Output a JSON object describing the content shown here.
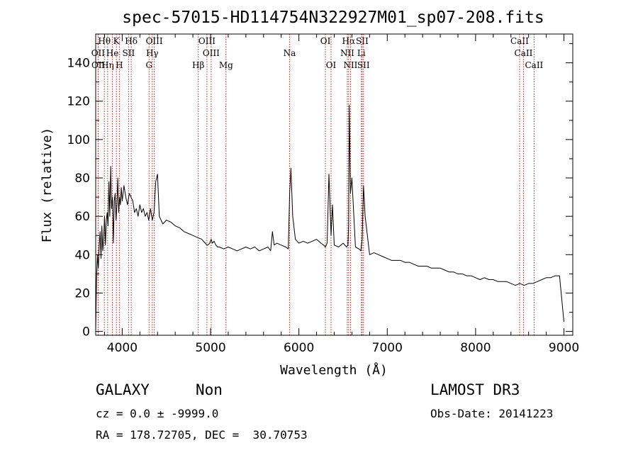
{
  "chart_data": {
    "type": "line",
    "title": "spec-57015-HD114754N322927M01_sp07-208.fits",
    "xlabel": "Wavelength (Å)",
    "ylabel": "Flux (relative)",
    "xlim": [
      3700,
      9100
    ],
    "ylim": [
      -2,
      155
    ],
    "x_ticks": [
      4000,
      5000,
      6000,
      7000,
      8000,
      9000
    ],
    "y_ticks": [
      0,
      20,
      40,
      60,
      80,
      100,
      120,
      140
    ],
    "series": [
      {
        "x": [
          3700,
          3710,
          3720,
          3730,
          3740,
          3750,
          3760,
          3770,
          3780,
          3790,
          3800,
          3810,
          3820,
          3830,
          3840,
          3850,
          3860,
          3870,
          3880,
          3890,
          3900,
          3910,
          3920,
          3930,
          3940,
          3950,
          3960,
          3970,
          3980,
          3990,
          4000,
          4020,
          4040,
          4060,
          4080,
          4100,
          4120,
          4140,
          4160,
          4180,
          4200,
          4220,
          4240,
          4260,
          4280,
          4300,
          4320,
          4340,
          4360,
          4380,
          4400,
          4420,
          4440,
          4460,
          4480,
          4500,
          4550,
          4600,
          4650,
          4700,
          4750,
          4800,
          4850,
          4900,
          4920,
          4940,
          4958,
          4970,
          4990,
          5007,
          5020,
          5040,
          5060,
          5080,
          5100,
          5150,
          5200,
          5250,
          5300,
          5350,
          5400,
          5450,
          5500,
          5550,
          5600,
          5650,
          5680,
          5700,
          5720,
          5750,
          5800,
          5850,
          5880,
          5895,
          5910,
          5930,
          5960,
          6000,
          6050,
          6100,
          6150,
          6200,
          6250,
          6280,
          6300,
          6320,
          6340,
          6364,
          6380,
          6400,
          6450,
          6500,
          6540,
          6555,
          6563,
          6570,
          6584,
          6600,
          6640,
          6680,
          6700,
          6716,
          6731,
          6750,
          6800,
          6850,
          6900,
          6950,
          7000,
          7050,
          7100,
          7150,
          7200,
          7250,
          7300,
          7350,
          7400,
          7450,
          7500,
          7550,
          7600,
          7650,
          7700,
          7750,
          7800,
          7850,
          7900,
          7950,
          8000,
          8050,
          8100,
          8150,
          8200,
          8250,
          8300,
          8350,
          8400,
          8450,
          8500,
          8550,
          8600,
          8650,
          8700,
          8750,
          8800,
          8850,
          8900,
          8950,
          9000
        ],
        "y": [
          0,
          28,
          40,
          33,
          45,
          52,
          38,
          55,
          42,
          48,
          60,
          45,
          58,
          62,
          55,
          78,
          60,
          86,
          64,
          70,
          46,
          68,
          72,
          58,
          66,
          80,
          62,
          70,
          66,
          75,
          68,
          76,
          70,
          66,
          72,
          70,
          68,
          62,
          64,
          60,
          66,
          62,
          64,
          60,
          62,
          58,
          64,
          58,
          62,
          78,
          82,
          60,
          58,
          56,
          57,
          58,
          57,
          55,
          54,
          52,
          51,
          50,
          49,
          48,
          47,
          46,
          45,
          45,
          46,
          48,
          46,
          47,
          45,
          44,
          44,
          43,
          44,
          43,
          42,
          43,
          44,
          43,
          44,
          42,
          43,
          44,
          42,
          52,
          45,
          46,
          45,
          44,
          43,
          72,
          85,
          60,
          48,
          46,
          47,
          46,
          47,
          48,
          46,
          45,
          44,
          46,
          82,
          50,
          66,
          45,
          44,
          46,
          44,
          45,
          55,
          118,
          72,
          80,
          44,
          43,
          42,
          48,
          76,
          60,
          40,
          41,
          40,
          39,
          38,
          37,
          37,
          37,
          36,
          36,
          35,
          34,
          34,
          34,
          33,
          33,
          33,
          32,
          31,
          31,
          30,
          30,
          29,
          29,
          28,
          27,
          28,
          27,
          27,
          26,
          26,
          26,
          25,
          24,
          25,
          24,
          25,
          25,
          26,
          27,
          28,
          28,
          29,
          29,
          5
        ]
      }
    ],
    "emission_lines": [
      {
        "label": "Hθ",
        "wavelength": 3798,
        "row": 1
      },
      {
        "label": "OII",
        "wavelength": 3727,
        "row": 2
      },
      {
        "label": "OII",
        "wavelength": 3729,
        "row": 3
      },
      {
        "label": "Hη",
        "wavelength": 3835,
        "row": 3
      },
      {
        "label": "He",
        "wavelength": 3889,
        "row": 2
      },
      {
        "label": "K",
        "wavelength": 3934,
        "row": 1
      },
      {
        "label": "H",
        "wavelength": 3968,
        "row": 3
      },
      {
        "label": "SII",
        "wavelength": 4072,
        "row": 2
      },
      {
        "label": "Hδ",
        "wavelength": 4102,
        "row": 1
      },
      {
        "label": "OIII",
        "wavelength": 4363,
        "row": 1
      },
      {
        "label": "Hγ",
        "wavelength": 4340,
        "row": 2
      },
      {
        "label": "G",
        "wavelength": 4304,
        "row": 3
      },
      {
        "label": "Hβ",
        "wavelength": 4861,
        "row": 3
      },
      {
        "label": "OIII",
        "wavelength": 4959,
        "row": 1
      },
      {
        "label": "OIII",
        "wavelength": 5007,
        "row": 2
      },
      {
        "label": "Mg",
        "wavelength": 5175,
        "row": 3
      },
      {
        "label": "Na",
        "wavelength": 5894,
        "row": 2
      },
      {
        "label": "OI",
        "wavelength": 6300,
        "row": 1
      },
      {
        "label": "OI",
        "wavelength": 6364,
        "row": 3
      },
      {
        "label": "Hα",
        "wavelength": 6563,
        "row": 1
      },
      {
        "label": "SII",
        "wavelength": 6716,
        "row": 1
      },
      {
        "label": "NII",
        "wavelength": 6548,
        "row": 2
      },
      {
        "label": "NII",
        "wavelength": 6584,
        "row": 3
      },
      {
        "label": "Li",
        "wavelength": 6707,
        "row": 2
      },
      {
        "label": "SII",
        "wavelength": 6731,
        "row": 3
      },
      {
        "label": "CaII",
        "wavelength": 8498,
        "row": 1
      },
      {
        "label": "CaII",
        "wavelength": 8542,
        "row": 2
      },
      {
        "label": "CaII",
        "wavelength": 8662,
        "row": 3
      }
    ],
    "line_color": "#000000",
    "marker_color": "#b22222"
  },
  "info": {
    "class_label": "GALAXY",
    "subclass_label": "Non",
    "redshift_text": "cz = 0.0 ± -9999.0",
    "coords_text": "RA = 178.72705, DEC =  30.70753",
    "survey_label": "LAMOST DR3",
    "obs_date_text": "Obs-Date: 20141223"
  }
}
